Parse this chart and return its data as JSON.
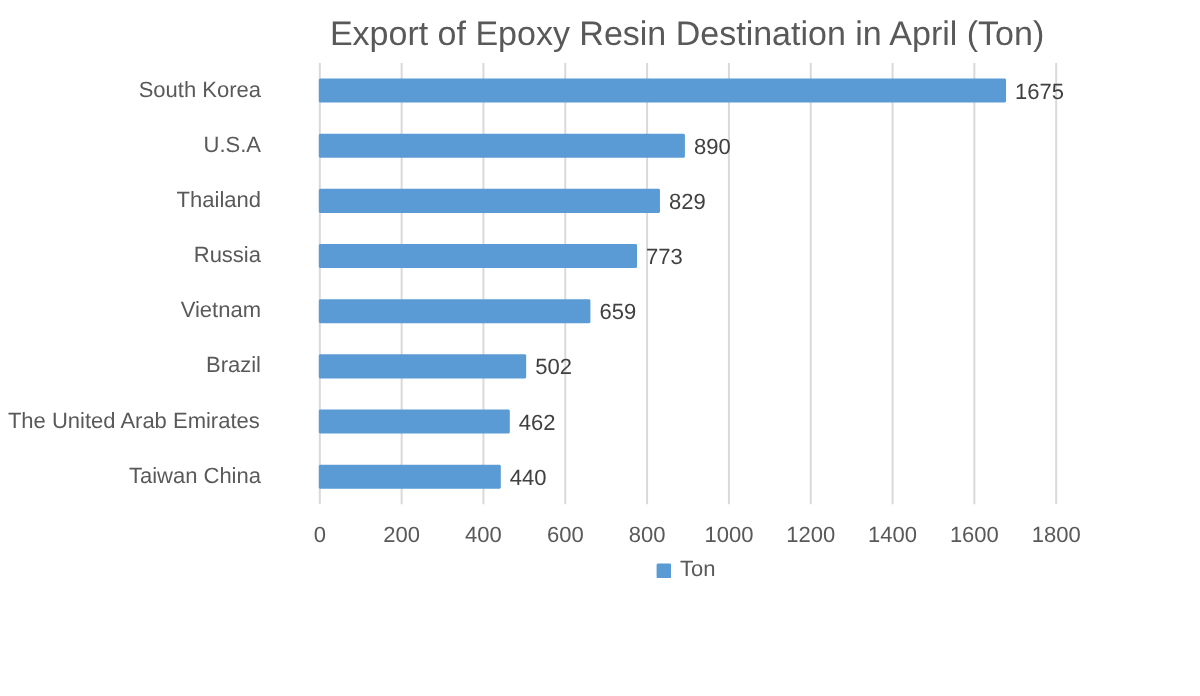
{
  "chart_data": {
    "type": "bar",
    "orientation": "horizontal",
    "title": "Export of Epoxy Resin Destination in April (Ton)",
    "categories": [
      "South Korea",
      "U.S.A",
      "Thailand",
      "Russia",
      "Vietnam",
      "Brazil",
      "The United Arab Emirates",
      "Taiwan China"
    ],
    "series": [
      {
        "name": "Ton",
        "color": "#5b9bd5",
        "values": [
          1675,
          890,
          829,
          773,
          659,
          502,
          462,
          440
        ]
      }
    ],
    "xlim": [
      0,
      1800
    ],
    "xticks": [
      0,
      200,
      400,
      600,
      800,
      1000,
      1200,
      1400,
      1600,
      1800
    ],
    "grid": "x",
    "legend": "bottom",
    "data_labels": true
  }
}
